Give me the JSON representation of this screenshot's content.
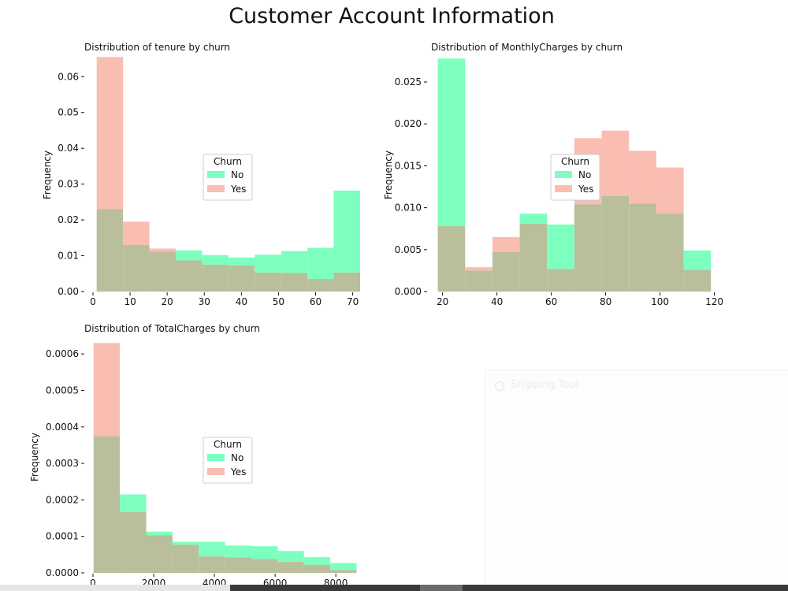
{
  "figure_title": "Customer Account Information",
  "colors": {
    "no": "#7dffbf",
    "yes": "#f9bdb2",
    "overlap": "#b9bf9b",
    "axis": "#111111"
  },
  "chart_data": [
    {
      "type": "histogram",
      "title": "Distribution of tenure by churn",
      "xlabel": "",
      "ylabel": "Frequency",
      "xlim": [
        0,
        72
      ],
      "ylim": [
        0,
        0.066
      ],
      "xticks": [
        0,
        10,
        20,
        30,
        40,
        50,
        60,
        70
      ],
      "xtick_labels": [
        "0",
        "10",
        "20",
        "30",
        "40",
        "50",
        "60",
        "70"
      ],
      "yticks": [
        0,
        0.01,
        0.02,
        0.03,
        0.04,
        0.05,
        0.06
      ],
      "ytick_labels": [
        "0.00",
        "0.01",
        "0.02",
        "0.03",
        "0.04",
        "0.05",
        "0.06"
      ],
      "legend": {
        "title": "Churn",
        "placement": "center",
        "labels": [
          "No",
          "Yes"
        ]
      },
      "bin_edges": [
        1,
        8.1,
        15.2,
        22.3,
        29.4,
        36.5,
        43.6,
        50.7,
        57.8,
        64.9,
        72
      ],
      "series": [
        {
          "name": "No",
          "values": [
            0.023,
            0.013,
            0.0112,
            0.0115,
            0.0102,
            0.0095,
            0.0103,
            0.0113,
            0.0122,
            0.0282
          ]
        },
        {
          "name": "Yes",
          "values": [
            0.0655,
            0.0195,
            0.012,
            0.0087,
            0.0075,
            0.0073,
            0.0053,
            0.0052,
            0.0035,
            0.0053
          ]
        }
      ]
    },
    {
      "type": "histogram",
      "title": "Distribution of MonthlyCharges by churn",
      "xlabel": "",
      "ylabel": "Frequency",
      "xlim": [
        17.5,
        121
      ],
      "ylim": [
        0,
        0.0282
      ],
      "xticks": [
        20,
        40,
        60,
        80,
        100,
        120
      ],
      "xtick_labels": [
        "20",
        "40",
        "60",
        "80",
        "100",
        "120"
      ],
      "yticks": [
        0,
        0.005,
        0.01,
        0.015,
        0.02,
        0.025
      ],
      "ytick_labels": [
        "0.000",
        "0.005",
        "0.010",
        "0.015",
        "0.020",
        "0.025"
      ],
      "legend": {
        "title": "Churn",
        "placement": "center",
        "labels": [
          "No",
          "Yes"
        ]
      },
      "bin_edges": [
        18.25,
        28.3,
        38.35,
        48.4,
        58.45,
        68.5,
        78.55,
        88.6,
        98.65,
        108.7,
        118.75
      ],
      "series": [
        {
          "name": "No",
          "values": [
            0.0278,
            0.0025,
            0.0047,
            0.0093,
            0.008,
            0.0104,
            0.0114,
            0.0105,
            0.0093,
            0.0049
          ]
        },
        {
          "name": "Yes",
          "values": [
            0.0078,
            0.0029,
            0.0065,
            0.0081,
            0.0027,
            0.0183,
            0.0192,
            0.0168,
            0.0148,
            0.0026
          ]
        }
      ]
    },
    {
      "type": "histogram",
      "title": "Distribution of TotalCharges by churn",
      "xlabel": "",
      "ylabel": "Frequency",
      "xlim": [
        0,
        8800
      ],
      "ylim": [
        0,
        0.00065
      ],
      "xticks": [
        0,
        2000,
        4000,
        6000,
        8000
      ],
      "xtick_labels": [
        "0",
        "2000",
        "4000",
        "6000",
        "8000"
      ],
      "yticks": [
        0,
        0.0001,
        0.0002,
        0.0003,
        0.0004,
        0.0005,
        0.0006
      ],
      "ytick_labels": [
        "0.0000",
        "0.0001",
        "0.0002",
        "0.0003",
        "0.0004",
        "0.0005",
        "0.0006"
      ],
      "legend": {
        "title": "Churn",
        "placement": "center",
        "labels": [
          "No",
          "Yes"
        ]
      },
      "bin_edges": [
        18.8,
        885.4,
        1752,
        2618.6,
        3485.2,
        4351.8,
        5218.4,
        6085,
        6951.6,
        7818.2,
        8684.8
      ],
      "series": [
        {
          "name": "No",
          "values": [
            0.000375,
            0.000215,
            0.000113,
            8.5e-05,
            8.5e-05,
            7.5e-05,
            7.3e-05,
            6e-05,
            4.3e-05,
            2.7e-05
          ]
        },
        {
          "name": "Yes",
          "values": [
            0.00063,
            0.000167,
            0.000103,
            7.7e-05,
            4.5e-05,
            4.2e-05,
            3.8e-05,
            3e-05,
            2.2e-05,
            8e-06
          ]
        }
      ]
    }
  ],
  "snipping_tool": {
    "title": "Snipping Tool"
  }
}
